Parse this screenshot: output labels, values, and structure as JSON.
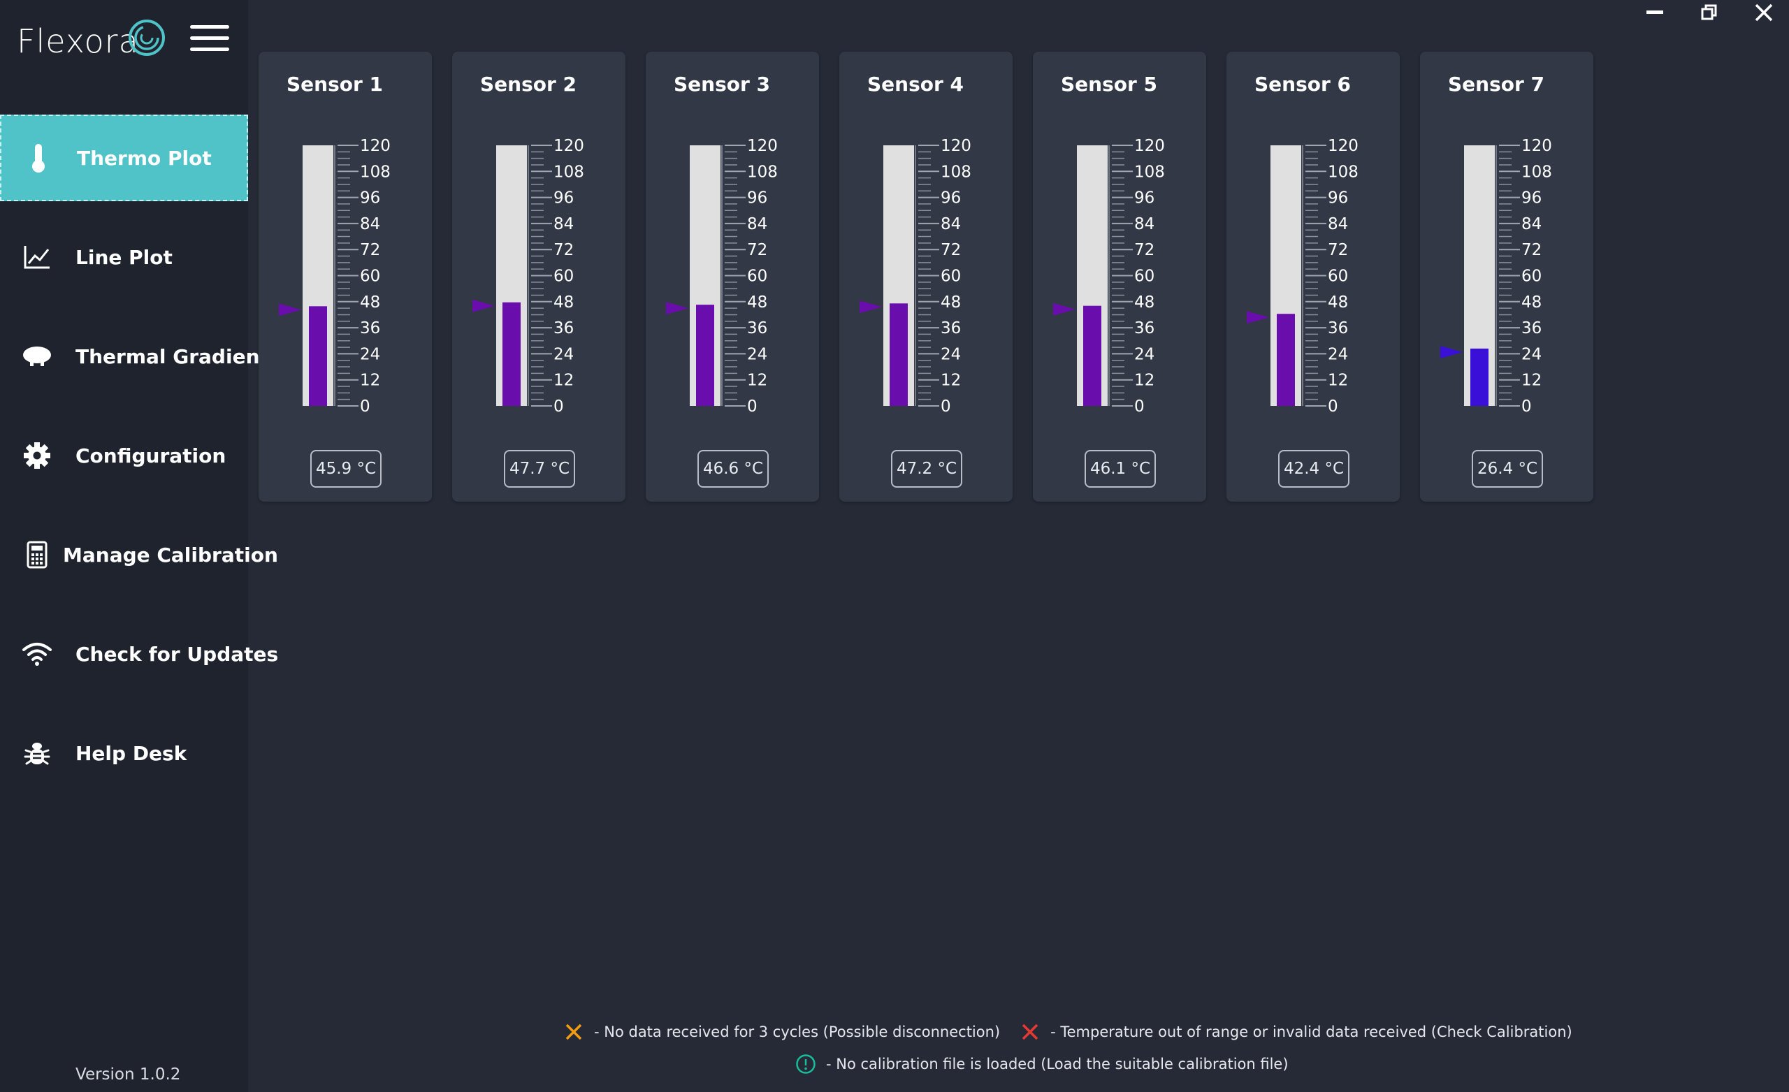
{
  "app": {
    "logo_text": "Flexora",
    "version": "Version 1.0.2"
  },
  "colors": {
    "accent": "#4fc3c7",
    "bar_fill": "#6a0dad",
    "bar_fill_low": "#3a10d8",
    "tube": "#e0e0e0",
    "warn_orange": "#f39c12",
    "error_red": "#e53935",
    "info_teal": "#1abc9c"
  },
  "sidebar": {
    "items": [
      {
        "label": "Thermo Plot",
        "icon": "thermometer-icon",
        "active": true
      },
      {
        "label": "Line Plot",
        "icon": "line-chart-icon",
        "active": false
      },
      {
        "label": "Thermal Gradient",
        "icon": "thermal-gradient-icon",
        "active": false
      },
      {
        "label": "Configuration",
        "icon": "gear-icon",
        "active": false
      },
      {
        "label": "Manage Calibration",
        "icon": "calculator-icon",
        "active": false
      },
      {
        "label": "Check for Updates",
        "icon": "wifi-icon",
        "active": false
      },
      {
        "label": "Help Desk",
        "icon": "bug-icon",
        "active": false
      }
    ]
  },
  "scale": {
    "min": 0,
    "max": 120,
    "ticks": [
      "120",
      "108",
      "96",
      "84",
      "72",
      "60",
      "48",
      "36",
      "24",
      "12",
      "0"
    ]
  },
  "sensors": [
    {
      "name": "Sensor 1",
      "value": 45.9,
      "readout": "45.9 °C"
    },
    {
      "name": "Sensor 2",
      "value": 47.7,
      "readout": "47.7 °C"
    },
    {
      "name": "Sensor 3",
      "value": 46.6,
      "readout": "46.6 °C"
    },
    {
      "name": "Sensor 4",
      "value": 47.2,
      "readout": "47.2 °C"
    },
    {
      "name": "Sensor 5",
      "value": 46.1,
      "readout": "46.1 °C"
    },
    {
      "name": "Sensor 6",
      "value": 42.4,
      "readout": "42.4 °C"
    },
    {
      "name": "Sensor 7",
      "value": 26.4,
      "readout": "26.4 °C"
    }
  ],
  "legend": {
    "no_data": "- No data received for 3 cycles (Possible disconnection)",
    "out_of_range": "- Temperature out of range or invalid data received (Check Calibration)",
    "no_calibration": "- No calibration file is loaded (Load the suitable calibration file)"
  }
}
